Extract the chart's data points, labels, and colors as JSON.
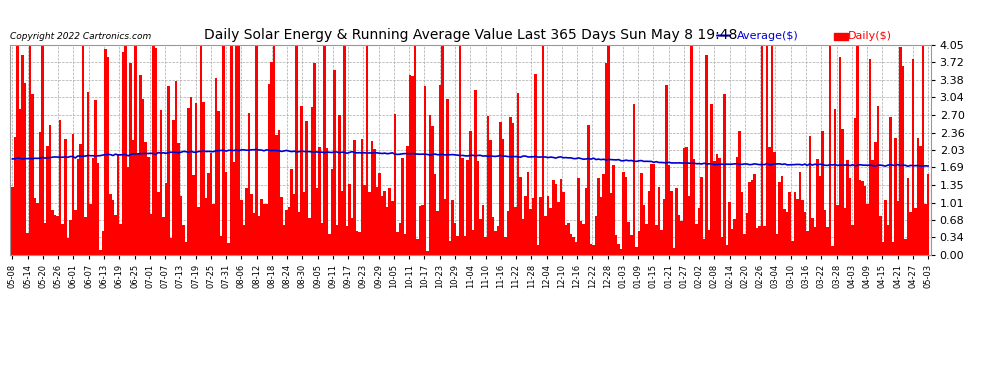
{
  "title": "Daily Solar Energy & Running Average Value Last 365 Days Sun May 8 19:48",
  "copyright": "Copyright 2022 Cartronics.com",
  "legend_avg": "Average($)",
  "legend_daily": "Daily($)",
  "ylim": [
    0.0,
    4.05
  ],
  "yticks": [
    0.0,
    0.34,
    0.68,
    1.01,
    1.35,
    1.69,
    2.03,
    2.36,
    2.7,
    3.04,
    3.38,
    3.72,
    4.05
  ],
  "bar_color": "#ff0000",
  "avg_color": "#0000cc",
  "bg_color": "#ffffff",
  "grid_color": "#aaaaaa",
  "title_color": "#000000",
  "copyright_color": "#000000",
  "bar_width": 1.0,
  "xtick_labels": [
    "05-08",
    "05-14",
    "05-20",
    "05-26",
    "06-01",
    "06-07",
    "06-13",
    "06-19",
    "06-25",
    "07-01",
    "07-07",
    "07-13",
    "07-19",
    "07-25",
    "07-31",
    "08-06",
    "08-12",
    "08-18",
    "08-24",
    "08-30",
    "09-05",
    "09-11",
    "09-17",
    "09-23",
    "09-29",
    "10-05",
    "10-11",
    "10-17",
    "10-23",
    "10-29",
    "11-04",
    "11-10",
    "11-16",
    "11-22",
    "11-28",
    "12-04",
    "12-10",
    "12-16",
    "12-22",
    "12-28",
    "01-03",
    "01-09",
    "01-15",
    "01-21",
    "01-27",
    "02-02",
    "02-08",
    "02-14",
    "02-20",
    "02-26",
    "03-04",
    "03-10",
    "03-16",
    "03-22",
    "03-28",
    "04-03",
    "04-09",
    "04-15",
    "04-21",
    "04-27",
    "05-03"
  ]
}
